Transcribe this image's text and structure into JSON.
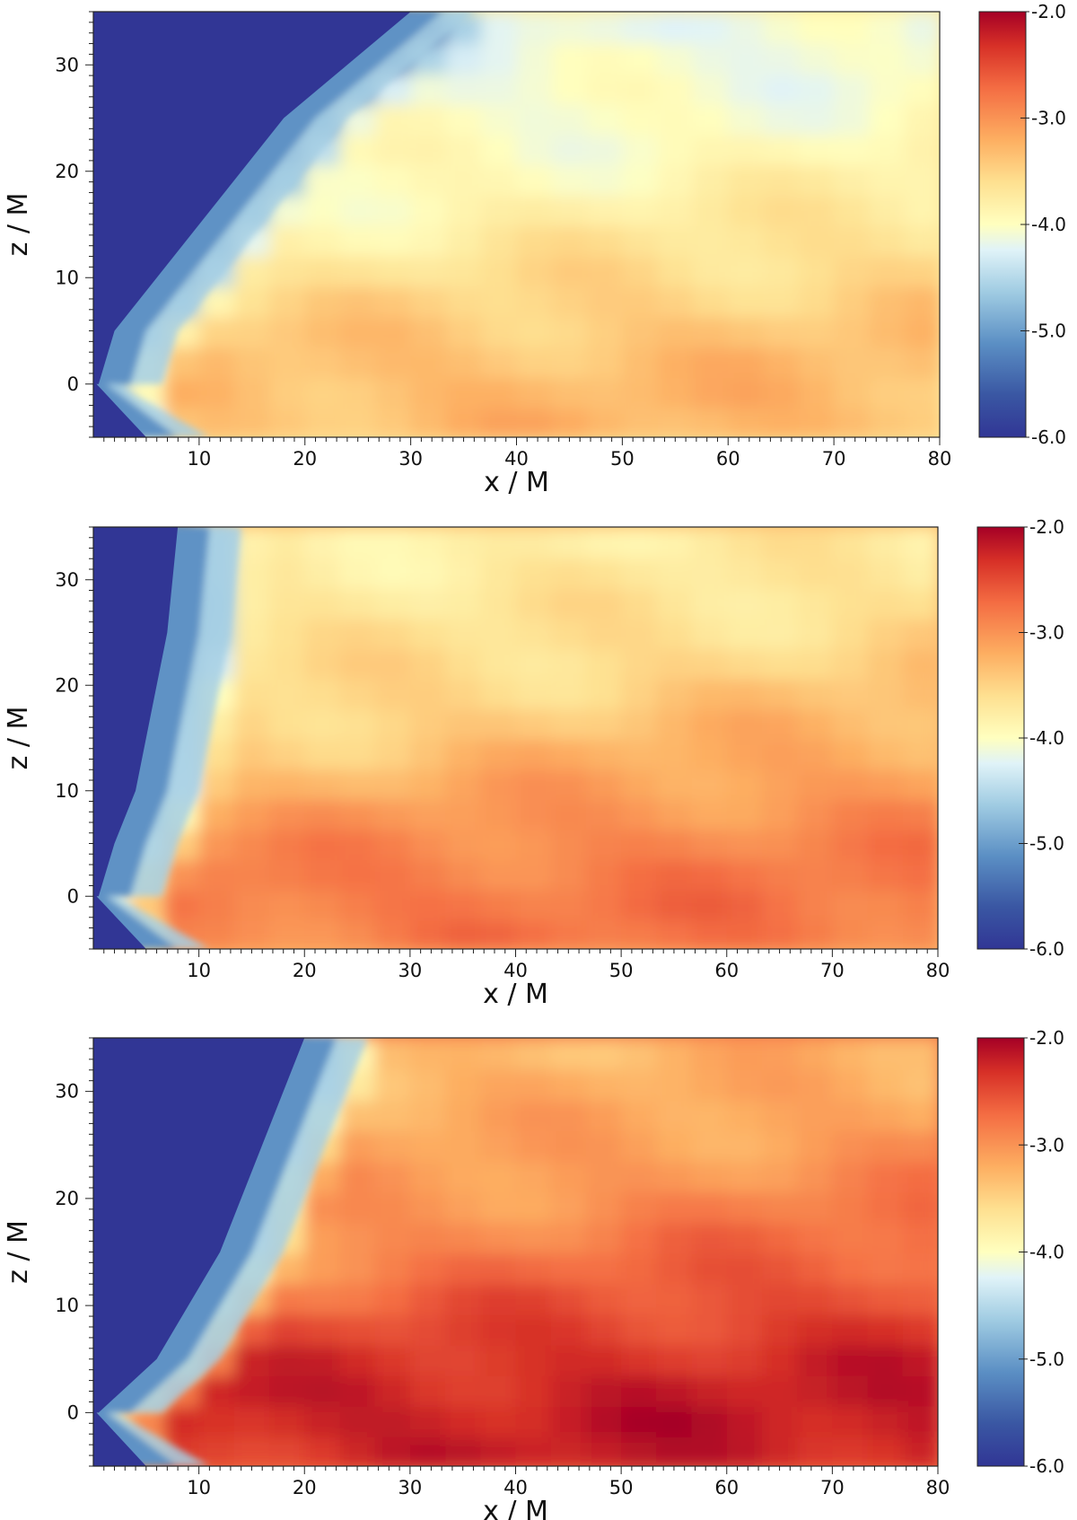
{
  "chart_data": [
    {
      "type": "heatmap",
      "panel": 1,
      "xlabel": "x / M",
      "ylabel": "z / M",
      "xlim": [
        0,
        80
      ],
      "ylim": [
        -5,
        35
      ],
      "xticks": [
        10,
        20,
        30,
        40,
        50,
        60,
        70,
        80
      ],
      "yticks": [
        0,
        10,
        20,
        30
      ],
      "colorbar": {
        "range": [
          -6.0,
          -2.0
        ],
        "ticks": [
          "-2.0",
          "-3.0",
          "-4.0",
          "-5.0",
          "-6.0"
        ],
        "colormap": "RdYlBu_r"
      },
      "features": {
        "funnel_edge_x": [
          [
            0,
            0.5
          ],
          [
            5,
            2
          ],
          [
            10,
            6
          ],
          [
            15,
            10
          ],
          [
            20,
            14
          ],
          [
            25,
            18
          ],
          [
            30,
            24
          ],
          [
            35,
            30
          ]
        ],
        "disk_peak_value": -3.3,
        "far_field_value": -3.7
      }
    },
    {
      "type": "heatmap",
      "panel": 2,
      "xlabel": "x / M",
      "ylabel": "z / M",
      "xlim": [
        0,
        80
      ],
      "ylim": [
        -5,
        35
      ],
      "xticks": [
        10,
        20,
        30,
        40,
        50,
        60,
        70,
        80
      ],
      "yticks": [
        0,
        10,
        20,
        30
      ],
      "colorbar": {
        "range": [
          -6.0,
          -2.0
        ],
        "ticks": [
          "-2.0",
          "-3.0",
          "-4.0",
          "-5.0",
          "-6.0"
        ],
        "colormap": "RdYlBu_r"
      },
      "features": {
        "funnel_edge_x": [
          [
            0,
            0.5
          ],
          [
            5,
            2
          ],
          [
            10,
            4
          ],
          [
            15,
            5
          ],
          [
            20,
            6
          ],
          [
            25,
            7
          ],
          [
            30,
            7.5
          ],
          [
            35,
            8
          ]
        ],
        "disk_peak_value": -2.8,
        "far_field_value": -3.3
      }
    },
    {
      "type": "heatmap",
      "panel": 3,
      "xlabel": "x / M",
      "ylabel": "z / M",
      "xlim": [
        0,
        80
      ],
      "ylim": [
        -5,
        35
      ],
      "xticks": [
        10,
        20,
        30,
        40,
        50,
        60,
        70,
        80
      ],
      "yticks": [
        0,
        10,
        20,
        30
      ],
      "colorbar": {
        "range": [
          -6.0,
          -2.0
        ],
        "ticks": [
          "-2.0",
          "-3.0",
          "-4.0",
          "-5.0",
          "-6.0"
        ],
        "colormap": "RdYlBu_r"
      },
      "features": {
        "funnel_edge_x": [
          [
            0,
            0.5
          ],
          [
            5,
            6
          ],
          [
            10,
            9
          ],
          [
            15,
            12
          ],
          [
            20,
            14
          ],
          [
            25,
            16
          ],
          [
            30,
            18
          ],
          [
            35,
            20
          ]
        ],
        "disk_peak_value": -2.2,
        "far_field_value": -2.8
      }
    }
  ]
}
